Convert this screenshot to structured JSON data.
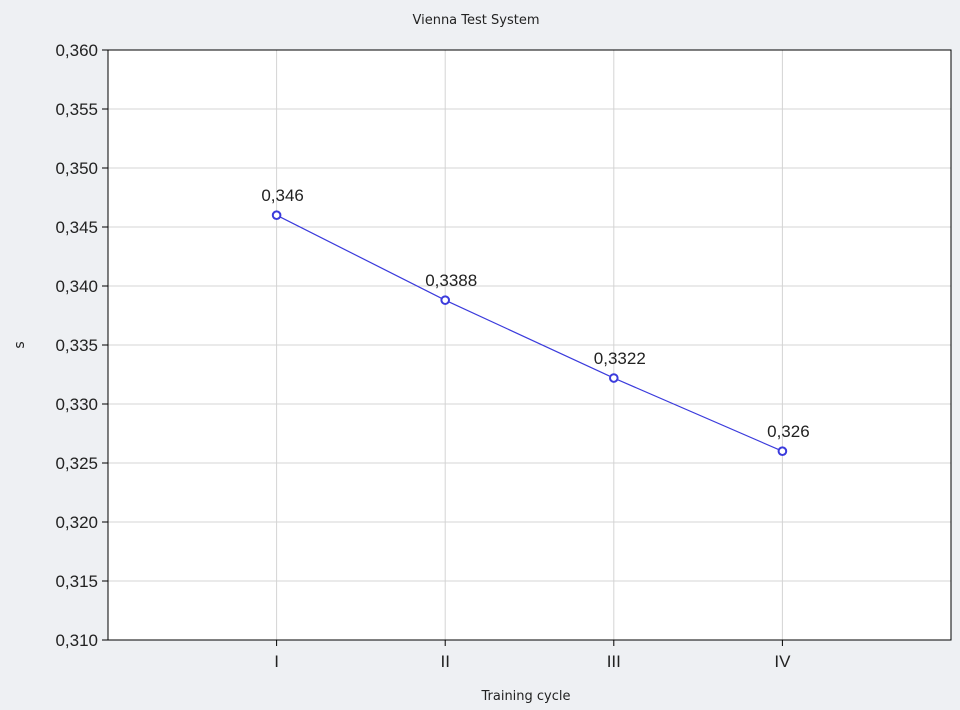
{
  "chart_data": {
    "type": "line",
    "title": "Vienna Test System",
    "xlabel": "Training cycle",
    "ylabel": "s",
    "categories": [
      "I",
      "II",
      "III",
      "IV"
    ],
    "series": [
      {
        "values": [
          0.346,
          0.3388,
          0.3322,
          0.326
        ],
        "color": "#3b3bdc"
      }
    ],
    "data_labels": [
      "0,346",
      "0,3388",
      "0,3322",
      "0,326"
    ],
    "ylim": [
      0.31,
      0.36
    ],
    "yticks": [
      "0,310",
      "0,315",
      "0,320",
      "0,325",
      "0,330",
      "0,335",
      "0,340",
      "0,345",
      "0,350",
      "0,355",
      "0,360"
    ],
    "grid": true,
    "legend": "none"
  },
  "colors": {
    "background": "#eef0f3",
    "plot_background": "#ffffff",
    "grid": "#d4d4d4",
    "axis": "#000000",
    "series": "#3b3bdc"
  }
}
